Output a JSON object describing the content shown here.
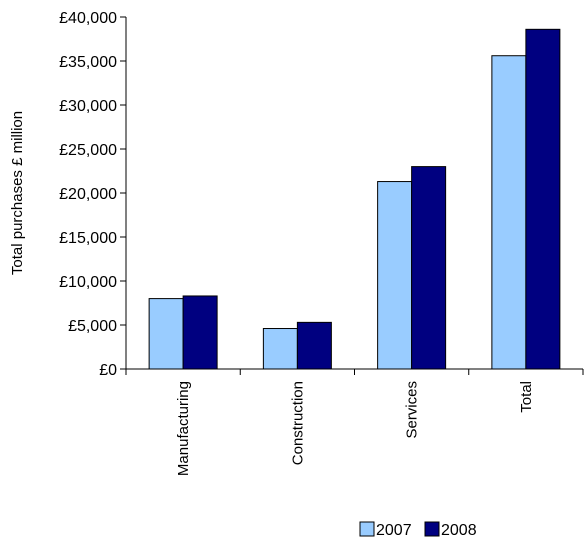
{
  "chart_data": {
    "type": "bar",
    "title": "",
    "xlabel": "",
    "ylabel": "Total purchases £ million",
    "categories": [
      "Manufacturing",
      "Construction",
      "Services",
      "Total"
    ],
    "series": [
      {
        "name": "2007",
        "values": [
          8000,
          4600,
          21300,
          35600
        ],
        "color": "#99ccff"
      },
      {
        "name": "2008",
        "values": [
          8300,
          5300,
          23000,
          38600
        ],
        "color": "#000080"
      }
    ],
    "ylim": [
      0,
      40000
    ],
    "yticks": [
      0,
      5000,
      10000,
      15000,
      20000,
      25000,
      30000,
      35000,
      40000
    ],
    "ytick_labels": [
      "£0",
      "£5,000",
      "£10,000",
      "£15,000",
      "£20,000",
      "£25,000",
      "£30,000",
      "£35,000",
      "£40,000"
    ],
    "grid": false,
    "legend_position": "bottom"
  }
}
